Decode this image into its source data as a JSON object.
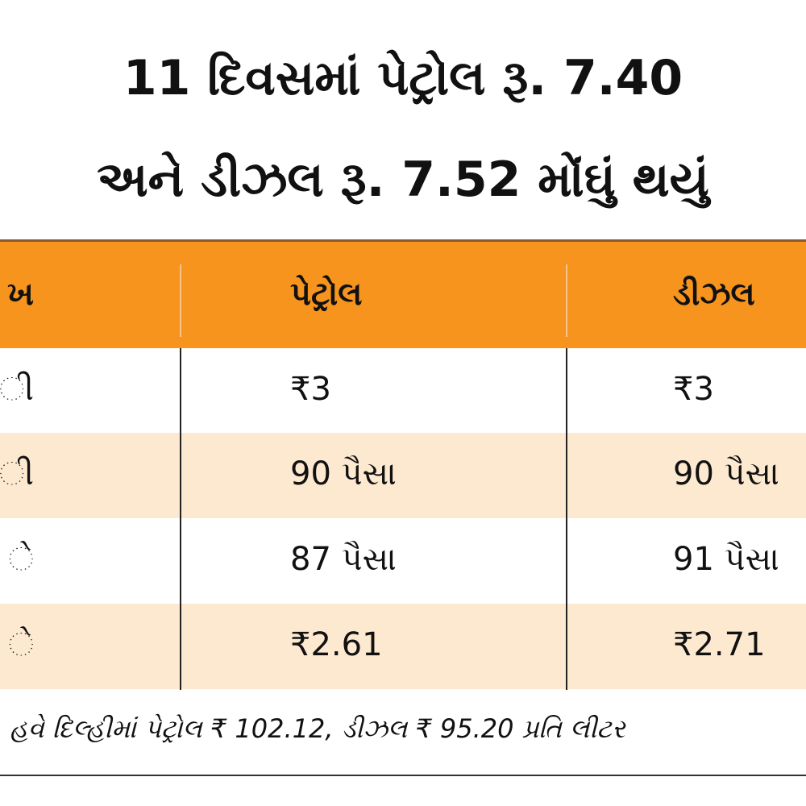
{
  "header": {
    "title_lines": [
      "11 દિવસમાં પેટ્રોલ રૂ. 7.40",
      "અને ડીઝલ રૂ. 7.52 મોંઘું થયું"
    ]
  },
  "table": {
    "columns": [
      "ખ",
      "પેટ્રોલ",
      "ડીઝલ"
    ],
    "rows": [
      [
        "ી",
        "₹3",
        "₹3"
      ],
      [
        "ી",
        "90 પૈસા",
        "90 પૈસા"
      ],
      [
        "ે",
        "87 પૈસા",
        "91 પૈસા"
      ],
      [
        "ે",
        "₹2.61",
        "₹2.71"
      ]
    ]
  },
  "footer": {
    "note": "હવે દિલ્હીમાં પેટ્રોલ ₹ 102.12, ડીઝલ ₹ 95.20 પ્રતિ લીટર"
  }
}
